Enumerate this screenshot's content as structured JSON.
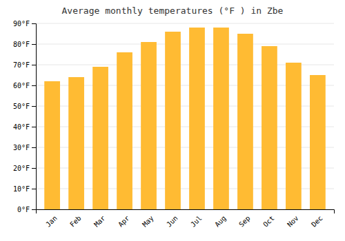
{
  "chart_data": {
    "type": "bar",
    "title": "Average monthly temperatures (°F ) in Zbe",
    "categories": [
      "Jan",
      "Feb",
      "Mar",
      "Apr",
      "May",
      "Jun",
      "Jul",
      "Aug",
      "Sep",
      "Oct",
      "Nov",
      "Dec"
    ],
    "values": [
      62,
      64,
      69,
      76,
      81,
      86,
      88,
      88,
      85,
      79,
      71,
      65
    ],
    "color": "#FFBB33",
    "ylim": [
      0,
      90
    ],
    "yticks": [
      {
        "value": 0,
        "label": "0°F"
      },
      {
        "value": 10,
        "label": "10°F"
      },
      {
        "value": 20,
        "label": "20°F"
      },
      {
        "value": 30,
        "label": "30°F"
      },
      {
        "value": 40,
        "label": "40°F"
      },
      {
        "value": 50,
        "label": "50°F"
      },
      {
        "value": 60,
        "label": "60°F"
      },
      {
        "value": 70,
        "label": "70°F"
      },
      {
        "value": 80,
        "label": "80°F"
      },
      {
        "value": 90,
        "label": "90°F"
      }
    ],
    "grid": true
  }
}
